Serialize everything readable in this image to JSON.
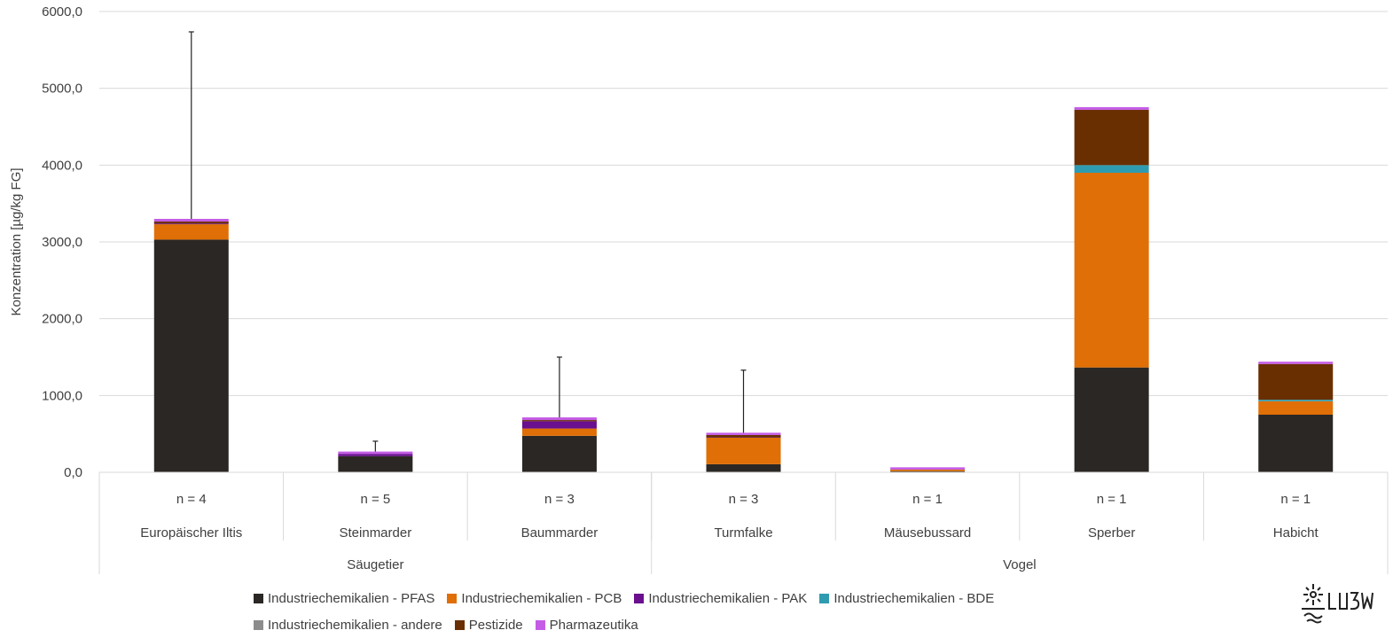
{
  "chart_data": {
    "type": "bar",
    "stacked": true,
    "ylabel": "Konzentration [µg/kg FG]",
    "ylim": [
      0,
      6000
    ],
    "yticks": [
      "0,0",
      "1000,0",
      "2000,0",
      "3000,0",
      "4000,0",
      "5000,0",
      "6000,0"
    ],
    "grid": true,
    "legend_position": "bottom",
    "categories": [
      "Europäischer Iltis",
      "Steinmarder",
      "Baummarder",
      "Turmfalke",
      "Mäusebussard",
      "Sperber",
      "Habicht"
    ],
    "n_labels": [
      "n = 4",
      "n = 5",
      "n = 3",
      "n = 3",
      "n = 1",
      "n = 1",
      "n = 1"
    ],
    "groups": [
      {
        "label": "Säugetier",
        "span": 3
      },
      {
        "label": "Vogel",
        "span": 4
      }
    ],
    "series": [
      {
        "name": "Industriechemikalien - PFAS",
        "color": "#2b2724",
        "values": [
          3030,
          210,
          475,
          105,
          15,
          1365,
          750
        ]
      },
      {
        "name": "Industriechemikalien - PCB",
        "color": "#df6f06",
        "values": [
          200,
          0,
          95,
          345,
          20,
          2535,
          175
        ]
      },
      {
        "name": "Industriechemikalien - PAK",
        "color": "#6a0f8e",
        "values": [
          10,
          30,
          95,
          5,
          0,
          0,
          0
        ]
      },
      {
        "name": "Industriechemikalien - BDE",
        "color": "#2e9bb0",
        "values": [
          0,
          0,
          0,
          0,
          0,
          100,
          20
        ]
      },
      {
        "name": "Industriechemikalien - andere",
        "color": "#8c8c8c",
        "values": [
          0,
          0,
          0,
          0,
          0,
          0,
          0
        ]
      },
      {
        "name": "Pestizide",
        "color": "#6a2f00",
        "values": [
          25,
          0,
          15,
          30,
          0,
          720,
          465
        ]
      },
      {
        "name": "Pharmazeutika",
        "color": "#c45ce6",
        "values": [
          35,
          30,
          35,
          30,
          30,
          35,
          30
        ]
      }
    ],
    "error_bar_top": [
      5735,
      405,
      1500,
      1330,
      null,
      null,
      null
    ]
  }
}
